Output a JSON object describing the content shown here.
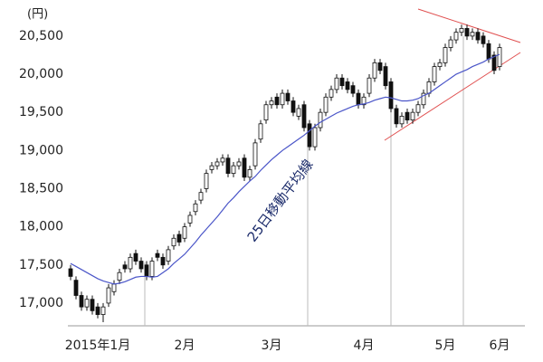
{
  "chart_data": {
    "type": "candlestick",
    "y_label": "(円)",
    "ylim": [
      16750,
      20700
    ],
    "yticks": [
      {
        "value": 17000,
        "label": "17,000"
      },
      {
        "value": 17500,
        "label": "17,500"
      },
      {
        "value": 18000,
        "label": "18,000"
      },
      {
        "value": 18500,
        "label": "18,500"
      },
      {
        "value": 19000,
        "label": "19,000"
      },
      {
        "value": 19500,
        "label": "19,500"
      },
      {
        "value": 20000,
        "label": "20,000"
      },
      {
        "value": 20500,
        "label": "20,500"
      }
    ],
    "grid": false,
    "up_color": "#ffffff",
    "down_color": "#111111",
    "categories": [
      null,
      null,
      null,
      null,
      null,
      "2015年1月",
      null,
      null,
      null,
      null,
      null,
      null,
      null,
      null,
      null,
      null,
      null,
      null,
      null,
      null,
      null,
      "2月",
      null,
      null,
      null,
      null,
      null,
      null,
      null,
      null,
      null,
      null,
      null,
      null,
      null,
      null,
      null,
      "3月",
      null,
      null,
      null,
      null,
      null,
      null,
      null,
      null,
      null,
      null,
      null,
      null,
      null,
      null,
      null,
      null,
      "4月",
      null,
      null,
      null,
      null,
      null,
      null,
      null,
      null,
      null,
      null,
      null,
      null,
      null,
      null,
      "5月",
      null,
      null,
      null,
      null,
      null,
      null,
      null,
      null,
      null,
      "6月"
    ],
    "open": [
      17450,
      17300,
      17100,
      16950,
      17050,
      16950,
      16850,
      17000,
      17150,
      17300,
      17500,
      17450,
      17650,
      17550,
      17500,
      17350,
      17650,
      17600,
      17550,
      17750,
      17900,
      17850,
      18050,
      18200,
      18350,
      18500,
      18750,
      18800,
      18850,
      18900,
      18700,
      18800,
      18900,
      18650,
      18800,
      19150,
      19400,
      19600,
      19700,
      19600,
      19750,
      19650,
      19450,
      19600,
      19350,
      19050,
      19300,
      19500,
      19700,
      19800,
      19950,
      19900,
      19850,
      19750,
      19600,
      19750,
      19950,
      20150,
      20100,
      19900,
      19550,
      19350,
      19500,
      19400,
      19500,
      19600,
      19750,
      19900,
      20100,
      20150,
      20350,
      20450,
      20550,
      20600,
      20500,
      20550,
      20500,
      20400,
      20250,
      20100
    ],
    "high": [
      17500,
      17350,
      17150,
      17100,
      17100,
      17000,
      17000,
      17250,
      17300,
      17450,
      17550,
      17650,
      17700,
      17600,
      17550,
      17600,
      17700,
      17650,
      17750,
      17900,
      17950,
      18050,
      18200,
      18350,
      18500,
      18750,
      18850,
      18900,
      18950,
      18950,
      18850,
      18900,
      18950,
      18800,
      19150,
      19400,
      19650,
      19700,
      19750,
      19800,
      19800,
      19700,
      19600,
      19650,
      19400,
      19350,
      19550,
      19750,
      19850,
      20000,
      20000,
      19950,
      19900,
      19800,
      19750,
      20000,
      20200,
      20200,
      20150,
      19950,
      19600,
      19500,
      19550,
      19550,
      19650,
      19800,
      19950,
      20150,
      20200,
      20400,
      20500,
      20600,
      20650,
      20650,
      20600,
      20600,
      20550,
      20450,
      20300,
      20400
    ],
    "low": [
      17300,
      17050,
      16900,
      16900,
      16850,
      16800,
      16750,
      16950,
      17100,
      17250,
      17400,
      17400,
      17500,
      17400,
      17300,
      17300,
      17550,
      17450,
      17500,
      17700,
      17750,
      17800,
      18000,
      18150,
      18300,
      18450,
      18700,
      18750,
      18800,
      18650,
      18650,
      18750,
      18600,
      18600,
      18750,
      19100,
      19350,
      19550,
      19550,
      19550,
      19600,
      19450,
      19400,
      19250,
      19000,
      19000,
      19250,
      19450,
      19650,
      19750,
      19800,
      19750,
      19700,
      19550,
      19550,
      19700,
      19900,
      20000,
      19800,
      19500,
      19300,
      19300,
      19350,
      19350,
      19450,
      19550,
      19700,
      19850,
      20050,
      20100,
      20300,
      20400,
      20500,
      20450,
      20450,
      20400,
      20350,
      20150,
      20000,
      20050
    ],
    "close": [
      17350,
      17100,
      16950,
      17050,
      16900,
      16850,
      16950,
      17200,
      17250,
      17400,
      17450,
      17600,
      17550,
      17450,
      17350,
      17550,
      17600,
      17500,
      17700,
      17850,
      17800,
      18000,
      18150,
      18300,
      18450,
      18700,
      18800,
      18850,
      18900,
      18700,
      18800,
      18850,
      18650,
      18750,
      19100,
      19350,
      19600,
      19650,
      19600,
      19750,
      19650,
      19500,
      19550,
      19300,
      19050,
      19300,
      19500,
      19700,
      19800,
      19950,
      19850,
      19800,
      19750,
      19600,
      19700,
      19950,
      20150,
      20050,
      19850,
      19550,
      19350,
      19450,
      19400,
      19500,
      19600,
      19750,
      19900,
      20100,
      20150,
      20350,
      20450,
      20550,
      20600,
      20500,
      20550,
      20450,
      20400,
      20200,
      20050,
      20350
    ],
    "ma": {
      "name": "25日移動平均線",
      "color": "#4a55c8",
      "values": [
        17520,
        17480,
        17440,
        17400,
        17360,
        17320,
        17290,
        17270,
        17250,
        17260,
        17280,
        17310,
        17340,
        17350,
        17350,
        17340,
        17350,
        17400,
        17450,
        17520,
        17580,
        17640,
        17720,
        17800,
        17890,
        17970,
        18050,
        18130,
        18220,
        18310,
        18380,
        18460,
        18530,
        18600,
        18660,
        18740,
        18810,
        18880,
        18940,
        19000,
        19050,
        19100,
        19150,
        19200,
        19260,
        19320,
        19370,
        19410,
        19450,
        19490,
        19520,
        19550,
        19580,
        19600,
        19610,
        19630,
        19660,
        19680,
        19700,
        19690,
        19670,
        19650,
        19650,
        19660,
        19680,
        19720,
        19750,
        19800,
        19850,
        19900,
        19950,
        20000,
        20030,
        20060,
        20100,
        20130,
        20160,
        20200,
        20230,
        20260
      ]
    }
  }
}
